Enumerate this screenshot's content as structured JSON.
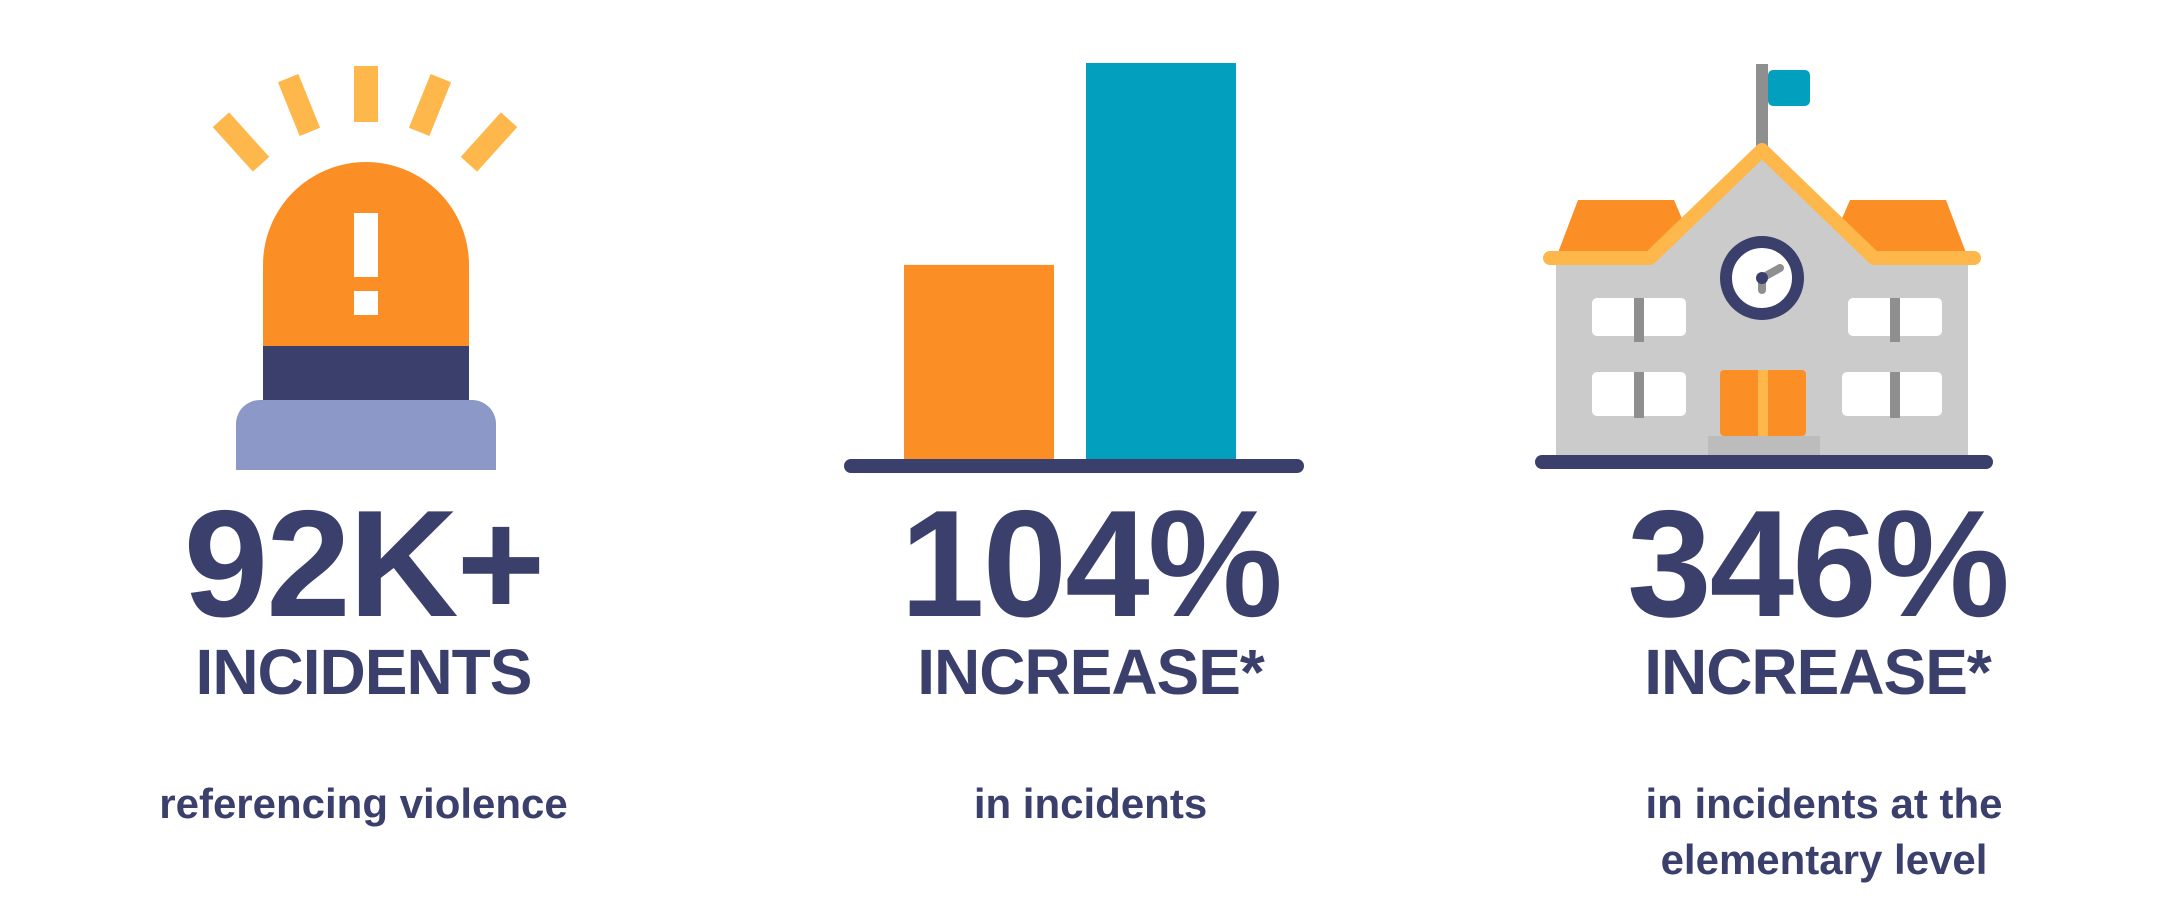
{
  "colors": {
    "navy": "#3a3f6b",
    "orange": "#fb8f26",
    "yellow": "#feb74a",
    "teal": "#029fbe",
    "lavender": "#8b98c8",
    "gray": "#cccbcc",
    "white": "#ffffff"
  },
  "stats": [
    {
      "icon": "alarm-siren-icon",
      "value": "92K+",
      "label": "INCIDENTS",
      "caption": "referencing violence"
    },
    {
      "icon": "bar-chart-icon",
      "value": "104%",
      "label": "INCREASE*",
      "caption": "in incidents"
    },
    {
      "icon": "schoolhouse-icon",
      "value": "346%",
      "label": "INCREASE*",
      "caption": "in incidents at the elementary level"
    }
  ],
  "chart_data": {
    "type": "bar",
    "categories": [
      "",
      ""
    ],
    "values": [
      1,
      2.04
    ],
    "colors": [
      "#fb8f26",
      "#029fbe"
    ],
    "title": "",
    "xlabel": "",
    "ylabel": "",
    "ylim": [
      0,
      2.04
    ],
    "grid": false,
    "legend": "none"
  }
}
